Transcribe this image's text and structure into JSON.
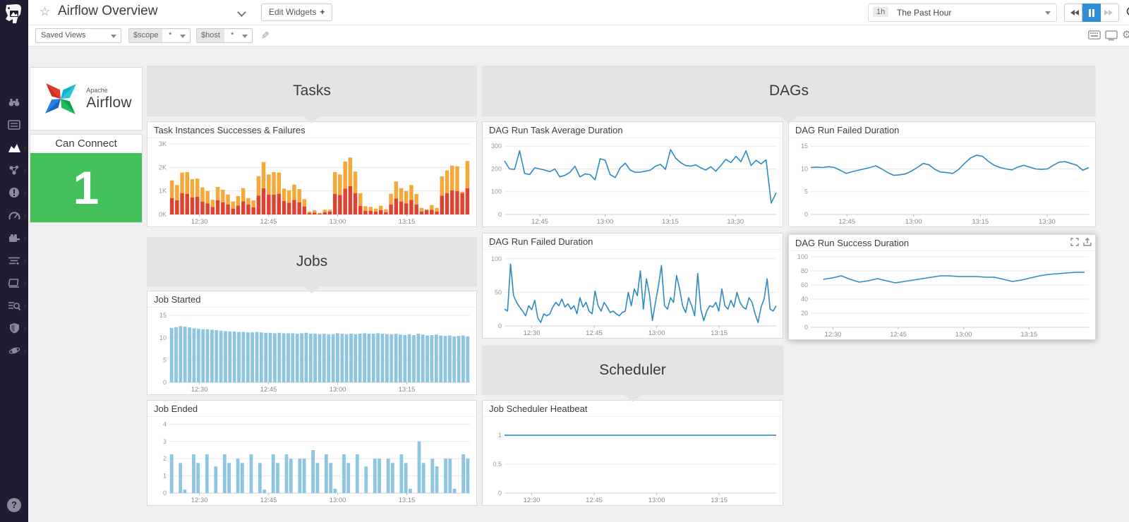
{
  "topbar": {
    "title": "Airflow Overview",
    "star_icon": "star-icon",
    "edit_widgets_label": "Edit Widgets",
    "plus": "+",
    "time_badge": "1h",
    "time_label": "The Past Hour"
  },
  "toolbar": {
    "saved_views_label": "Saved Views",
    "scope_tag": "$scope",
    "scope_value": "*",
    "host_tag": "$host",
    "host_value": "*"
  },
  "sidebar": {
    "icons": [
      "datadog-logo",
      "binoculars-icon",
      "events-list-icon",
      "dashboards-chart-icon",
      "infrastructure-icon",
      "monitors-alert-icon",
      "metrics-gauge-icon",
      "integrations-icon",
      "apm-traces-icon",
      "notebooks-icon",
      "logs-search-icon",
      "security-shield-icon",
      "settings-orbit-icon",
      "help-icon"
    ],
    "help_label": "?"
  },
  "sections": {
    "tasks": "Tasks",
    "dags": "DAGs",
    "jobs": "Jobs",
    "scheduler": "Scheduler"
  },
  "widgets": {
    "airflow_logo": {
      "line1": "Apache",
      "line2": "Airflow"
    },
    "can_connect": {
      "title": "Can Connect",
      "value": "1",
      "color": "#43c059"
    }
  },
  "colors": {
    "line_blue": "#2d8ac2",
    "bar_light_blue": "#8ec6e2",
    "bar_red": "#dd4330",
    "bar_orange": "#f6a93b",
    "accent_blue": "#2e8fd8",
    "ok_green": "#43c059"
  },
  "chart_data": [
    {
      "type": "stackedbar",
      "title": "Task Instances Successes & Failures",
      "ylim": [
        0,
        3
      ],
      "yticks": [
        "0K",
        "1K",
        "2K",
        "3K"
      ],
      "xticks": [
        "12:30",
        "12:45",
        "13:00",
        "13:15"
      ],
      "xtick_pos": [
        0.1,
        0.33,
        0.56,
        0.79
      ],
      "series": [
        {
          "name": "red",
          "color": "#dd4330",
          "values": [
            0.7,
            0.6,
            0.9,
            0.88,
            0.72,
            0.75,
            0.55,
            0.47,
            0.32,
            0.6,
            0.52,
            0.42,
            0.25,
            0.38,
            0.56,
            0.43,
            0.3,
            0.8,
            1.12,
            0.85,
            0.84,
            0.88,
            0.57,
            0.5,
            0.62,
            0.52,
            0.33,
            0.06,
            0.08,
            0.03,
            0.09,
            0.12,
            0.88,
            0.83,
            1.1,
            1.2,
            0.9,
            0.37,
            0.15,
            0.16,
            0.12,
            0.18,
            0.1,
            0.43,
            0.68,
            0.55,
            0.47,
            0.62,
            0.43,
            0.12,
            0.18,
            0.2,
            0.12,
            0.8,
            0.9,
            1.03,
            1.0,
            0.9,
            1.12
          ]
        },
        {
          "name": "orange",
          "color": "#f6a93b",
          "values": [
            0.75,
            0.65,
            0.88,
            0.92,
            0.78,
            0.77,
            0.6,
            0.53,
            0.3,
            0.57,
            0.53,
            0.43,
            0.3,
            0.4,
            0.56,
            0.27,
            0.3,
            0.83,
            1.11,
            0.85,
            0.96,
            0.9,
            0.53,
            0.53,
            0.65,
            0.56,
            0.32,
            0.06,
            0.1,
            0.04,
            0.11,
            0.08,
            0.92,
            0.87,
            1.15,
            1.22,
            0.92,
            0.53,
            0.2,
            0.16,
            0.13,
            0.19,
            0.12,
            0.45,
            0.72,
            0.57,
            0.53,
            0.63,
            0.44,
            0.16,
            0.04,
            0.2,
            0.16,
            0.82,
            0.97,
            1.05,
            1.05,
            0.07,
            1.15
          ]
        }
      ]
    },
    {
      "type": "line",
      "title": "DAG Run Task Average Duration",
      "color": "#2d8ac2",
      "ylim": [
        0,
        310
      ],
      "yticks": [
        "0",
        "100",
        "200",
        "300"
      ],
      "xticks": [
        "12:45",
        "13:00",
        "13:15",
        "13:30"
      ],
      "xtick_pos": [
        0.13,
        0.37,
        0.61,
        0.85
      ],
      "values": [
        235,
        200,
        198,
        280,
        180,
        175,
        205,
        200,
        195,
        188,
        200,
        165,
        172,
        185,
        212,
        165,
        178,
        175,
        152,
        245,
        238,
        175,
        162,
        205,
        225,
        195,
        185,
        186,
        190,
        195,
        212,
        220,
        198,
        285,
        248,
        228,
        215,
        212,
        218,
        205,
        195,
        210,
        190,
        215,
        242,
        228,
        255,
        232,
        280,
        215,
        238,
        222,
        240,
        50,
        95
      ]
    },
    {
      "type": "line",
      "title": "DAG Run Failed Duration",
      "color": "#2d8ac2",
      "ylim": [
        0,
        15.5
      ],
      "yticks": [
        "0",
        "5",
        "10",
        "15"
      ],
      "xticks": [
        "12:45",
        "13:00",
        "13:15",
        "13:30"
      ],
      "xtick_pos": [
        0.13,
        0.37,
        0.61,
        0.85
      ],
      "values": [
        10.3,
        10.4,
        10.3,
        10.5,
        10.3,
        9.7,
        9.0,
        9.4,
        9.7,
        10.0,
        10.3,
        10.7,
        10.0,
        9.2,
        8.6,
        8.7,
        8.9,
        9.5,
        10.3,
        11.2,
        10.9,
        9.9,
        9.3,
        9.2,
        9.0,
        9.9,
        11.2,
        12.4,
        13.0,
        12.8,
        11.7,
        10.8,
        10.3,
        10.0,
        9.8,
        10.4,
        10.8,
        10.4,
        10.0,
        9.9,
        10.0,
        10.8,
        11.5,
        11.6,
        11.2,
        10.8,
        9.7,
        10.3
      ]
    },
    {
      "type": "line",
      "title": "DAG Run Failed Duration",
      "color": "#2d8ac2",
      "ylim": [
        0,
        105
      ],
      "yticks": [
        "0",
        "50",
        "100"
      ],
      "xticks": [
        "12:30",
        "12:45",
        "13:00",
        "13:15"
      ],
      "xtick_pos": [
        0.1,
        0.33,
        0.56,
        0.79
      ],
      "values": [
        25,
        22,
        92,
        45,
        35,
        28,
        22,
        15,
        30,
        24,
        38,
        12,
        5,
        18,
        15,
        18,
        28,
        35,
        30,
        40,
        28,
        33,
        25,
        30,
        18,
        42,
        28,
        35,
        22,
        18,
        52,
        30,
        22,
        35,
        28,
        20,
        22,
        18,
        15,
        20,
        22,
        50,
        30,
        55,
        45,
        82,
        25,
        70,
        48,
        8,
        35,
        60,
        90,
        30,
        25,
        42,
        35,
        75,
        55,
        30,
        20,
        42,
        30,
        15,
        78,
        25,
        8,
        22,
        30,
        28,
        35,
        22,
        55,
        30,
        25,
        38,
        28,
        50,
        35,
        28,
        25,
        42,
        35,
        18,
        5,
        28,
        40,
        70,
        25,
        22,
        30
      ]
    },
    {
      "type": "line",
      "title": "DAG Run Success Duration",
      "color": "#2d8ac2",
      "ylim": [
        0,
        100
      ],
      "yticks": [
        "0",
        "20",
        "40",
        "60",
        "80",
        "100"
      ],
      "xticks": [
        "12:30",
        "12:45",
        "13:00",
        "13:15"
      ],
      "xtick_pos": [
        0.08,
        0.315,
        0.55,
        0.785
      ],
      "x_start": 0.045,
      "x_end": 0.985,
      "values": [
        68,
        70,
        73,
        68,
        64,
        66,
        69,
        66,
        63,
        65,
        67,
        69,
        71,
        73,
        73,
        72,
        72,
        72,
        71,
        71,
        68,
        65,
        67,
        70,
        73,
        75,
        76,
        77,
        78,
        78
      ]
    },
    {
      "type": "bar",
      "title": "Job Started",
      "color": "#8ec6e2",
      "ylim": [
        0,
        15.5
      ],
      "yticks": [
        "0",
        "5",
        "10",
        "15"
      ],
      "xticks": [
        "12:30",
        "12:45",
        "13:00",
        "13:15"
      ],
      "xtick_pos": [
        0.1,
        0.33,
        0.56,
        0.79
      ],
      "values": [
        12.2,
        12.4,
        12.6,
        12.5,
        12.3,
        12.1,
        12.0,
        11.9,
        11.9,
        11.8,
        11.7,
        11.6,
        11.5,
        11.4,
        11.4,
        11.3,
        11.3,
        11.2,
        11.2,
        11.3,
        11.2,
        11.1,
        11.1,
        11.0,
        11.1,
        11.0,
        11.0,
        11.0,
        10.9,
        11.0,
        11.1,
        10.9,
        10.9,
        10.8,
        10.9,
        10.8,
        10.8,
        11.0,
        10.9,
        10.8,
        10.9,
        10.8,
        10.9,
        11.0,
        10.9,
        10.9,
        11.0,
        10.9,
        10.8,
        10.8,
        10.9,
        10.7,
        10.6,
        10.8,
        10.6,
        10.9,
        10.7,
        10.5,
        10.6,
        10.7,
        10.5,
        10.4,
        10.5,
        10.3,
        10.4,
        10.5,
        10.3
      ]
    },
    {
      "type": "bar",
      "title": "Job Ended",
      "color": "#8ec6e2",
      "ylim": [
        0,
        4.1
      ],
      "yticks": [
        "0",
        "1",
        "2",
        "3",
        "4"
      ],
      "xticks": [
        "12:30",
        "12:45",
        "13:00",
        "13:15"
      ],
      "xtick_pos": [
        0.1,
        0.33,
        0.56,
        0.79
      ],
      "values": [
        2.25,
        0,
        1.75,
        0.2,
        0,
        2.25,
        1.75,
        0,
        2.25,
        0,
        1.55,
        0,
        2.25,
        1.75,
        0,
        2,
        1.75,
        0,
        2.25,
        0,
        1.75,
        0.2,
        0,
        2.25,
        1.75,
        0,
        2.25,
        2,
        0,
        2,
        2,
        0,
        2.5,
        1.75,
        0,
        2.25,
        1.75,
        0.25,
        0,
        2.25,
        1.75,
        0,
        2.25,
        0,
        1.55,
        0,
        2,
        2,
        0,
        2,
        1.75,
        0,
        2.25,
        1.75,
        0.25,
        0,
        3,
        1.75,
        0,
        2,
        1.55,
        0,
        2,
        2,
        0.25,
        0,
        2.25,
        2
      ]
    },
    {
      "type": "line",
      "title": "Job Scheduler Heatbeat",
      "color": "#1d7fbb",
      "ylim": [
        0,
        1.22
      ],
      "yticks": [
        "0",
        "0.5",
        "1"
      ],
      "xticks": [
        "12:30",
        "12:45",
        "13:00",
        "13:15"
      ],
      "xtick_pos": [
        0.1,
        0.33,
        0.56,
        0.79
      ],
      "values": [
        1,
        1
      ]
    }
  ]
}
